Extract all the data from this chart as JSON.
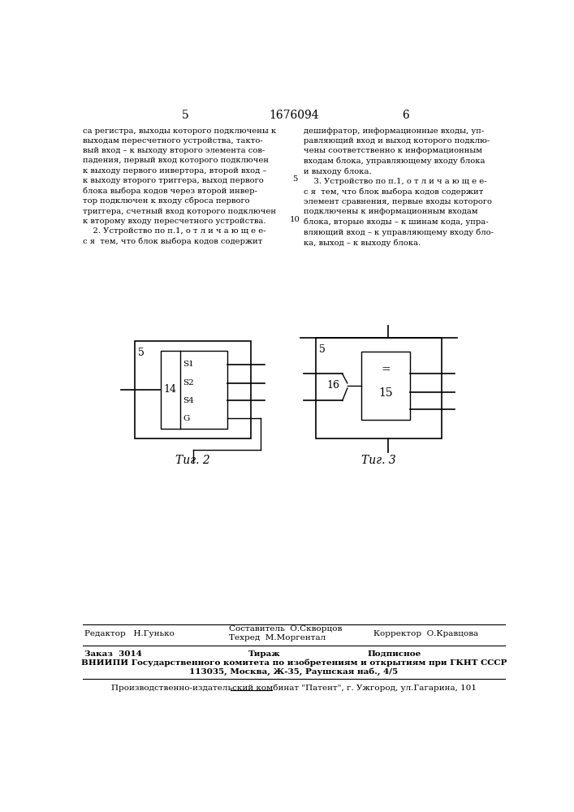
{
  "page_number_left": "5",
  "page_number_center": "1676094",
  "page_number_right": "6",
  "text_left": "са регистра, выходы которого подключены к\nвыходам пересчетного устройства, такто-\nвый вход – к выходу второго элемента сов-\nпадения, первый вход которого подключен\nк выходу первого инвертора, второй вход –\nк выходу второго триггера, выход первого\nблока выбора кодов через второй инвер-\nтор подключен к входу сброса первого\nтриггера, счетный вход которого подключен\nк второму входу пересчетного устройства.\n    2. Устройство по п.1, о т л и ч а ю щ е е-\nс я  тем, что блок выбора кодов содержит",
  "text_right": "дешифратор, информационные входы, уп-\nравляющий вход и выход которого подклю-\nчены соответственно к информационным\nвходам блока, управляющему входу блока\nи выходу блока.\n    3. Устройство по п.1, о т л и ч а ю щ е е-\nс я  тем, что блок выбора кодов содержит\nэлемент сравнения, первые входы которого\nподключены к информационным входам\nблока, вторые входы – к шинам кода, упра-\nвляющий вход – к управляющему входу бло-\nка, выход – к выходу блока.",
  "line_number_5": "5",
  "line_number_10": "10",
  "fig2_label": "Τиг. 2",
  "fig3_label": "Τиг. 3",
  "fig2_num5": "5",
  "fig2_num14": "14",
  "fig2_s1": "S1",
  "fig2_s2": "S2",
  "fig2_s4": "S4",
  "fig2_g": "G",
  "fig3_num5": "5",
  "fig3_num16": "16",
  "fig3_num15": "15",
  "fig3_eq": "=",
  "footer_editor": "Редактор   Н.Гунько",
  "footer_composer": "Составитель  О.Скворцов",
  "footer_tech": "Техред  М.Моргентал",
  "footer_corrector": "Корректор  О.Кравцова",
  "footer_order": "Заказ  3014",
  "footer_tirazh": "Тираж",
  "footer_podpisnoe": "Подписное",
  "footer_vniiipi": "ВНИИПИ Государственного комитета по изобретениям и открытиям при ГКНТ СССР",
  "footer_address": "113035, Москва, Ж-35, Раушская наб., 4/5",
  "footer_plant": "Производственно-издательский комбинат \"Патент\", г. Ужгород, ул.Гагарина, 101",
  "bg_color": "#ffffff"
}
